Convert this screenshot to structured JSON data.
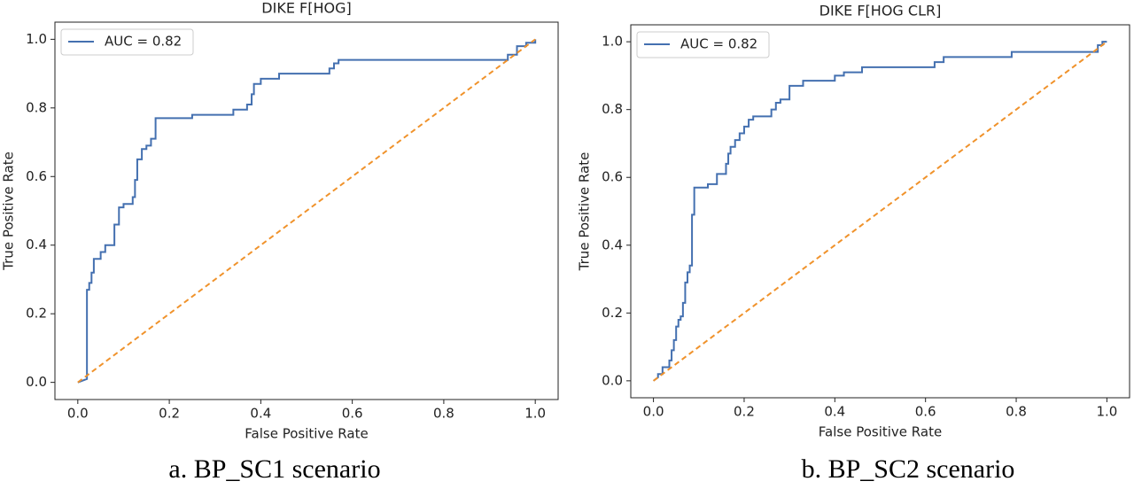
{
  "chart_data": [
    {
      "type": "line",
      "title": "DIKE F[HOG]",
      "xlabel": "False Positive Rate",
      "ylabel": "True Positive Rate",
      "caption": "a.  BP_SC1 scenario",
      "legend": "upper left",
      "xlim": [
        -0.05,
        1.05
      ],
      "ylim": [
        -0.05,
        1.05
      ],
      "xticks": [
        {
          "value": 0,
          "label": "0.0"
        },
        0.2,
        0.4,
        0.6,
        0.8,
        {
          "value": 1,
          "label": "1.0"
        }
      ],
      "yticks": [
        {
          "value": 0,
          "label": "0.0"
        },
        0.2,
        0.4,
        0.6,
        0.8,
        {
          "value": 1,
          "label": "1.0"
        }
      ],
      "series": [
        {
          "name": "AUC = 0.82",
          "color": "#4470b0",
          "style": "solid",
          "x": [
            0,
            0.02,
            0.02,
            0.025,
            0.025,
            0.03,
            0.03,
            0.035,
            0.035,
            0.05,
            0.05,
            0.06,
            0.06,
            0.08,
            0.08,
            0.09,
            0.09,
            0.1,
            0.1,
            0.12,
            0.12,
            0.125,
            0.125,
            0.13,
            0.13,
            0.14,
            0.14,
            0.15,
            0.15,
            0.16,
            0.16,
            0.17,
            0.17,
            0.25,
            0.25,
            0.34,
            0.34,
            0.37,
            0.37,
            0.38,
            0.38,
            0.385,
            0.385,
            0.4,
            0.4,
            0.44,
            0.44,
            0.55,
            0.55,
            0.56,
            0.56,
            0.57,
            0.57,
            0.94,
            0.94,
            0.96,
            0.96,
            0.98,
            0.98,
            1,
            1
          ],
          "values": [
            0,
            0.01,
            0.27,
            0.27,
            0.29,
            0.29,
            0.32,
            0.32,
            0.36,
            0.36,
            0.38,
            0.38,
            0.4,
            0.4,
            0.46,
            0.46,
            0.51,
            0.51,
            0.52,
            0.52,
            0.54,
            0.54,
            0.59,
            0.59,
            0.65,
            0.65,
            0.68,
            0.68,
            0.69,
            0.69,
            0.71,
            0.71,
            0.77,
            0.77,
            0.78,
            0.78,
            0.795,
            0.795,
            0.81,
            0.81,
            0.84,
            0.84,
            0.87,
            0.87,
            0.885,
            0.885,
            0.9,
            0.9,
            0.915,
            0.915,
            0.93,
            0.93,
            0.94,
            0.94,
            0.955,
            0.955,
            0.98,
            0.98,
            0.99,
            0.99,
            1
          ]
        },
        {
          "color": "#f0922b",
          "style": "dashed",
          "x": [
            0,
            1
          ],
          "values": [
            0,
            1
          ]
        }
      ]
    },
    {
      "type": "line",
      "title": "DIKE F[HOG CLR]",
      "xlabel": "False Positive Rate",
      "ylabel": "True Positive Rate",
      "caption": "b. BP_SC2 scenario",
      "legend": "upper left",
      "xlim": [
        -0.05,
        1.05
      ],
      "ylim": [
        -0.05,
        1.05
      ],
      "xticks": [
        {
          "value": 0,
          "label": "0.0"
        },
        0.2,
        0.4,
        0.6,
        0.8,
        {
          "value": 1,
          "label": "1.0"
        }
      ],
      "yticks": [
        {
          "value": 0,
          "label": "0.0"
        },
        0.2,
        0.4,
        0.6,
        0.8,
        {
          "value": 1,
          "label": "1.0"
        }
      ],
      "series": [
        {
          "name": "AUC = 0.82",
          "color": "#4470b0",
          "style": "solid",
          "x": [
            0,
            0.01,
            0.01,
            0.02,
            0.02,
            0.035,
            0.035,
            0.04,
            0.04,
            0.045,
            0.045,
            0.05,
            0.05,
            0.055,
            0.055,
            0.06,
            0.06,
            0.065,
            0.065,
            0.07,
            0.07,
            0.075,
            0.075,
            0.08,
            0.08,
            0.085,
            0.085,
            0.09,
            0.09,
            0.12,
            0.12,
            0.14,
            0.14,
            0.16,
            0.16,
            0.165,
            0.165,
            0.17,
            0.17,
            0.18,
            0.18,
            0.19,
            0.19,
            0.2,
            0.2,
            0.21,
            0.21,
            0.22,
            0.22,
            0.26,
            0.26,
            0.27,
            0.27,
            0.28,
            0.28,
            0.3,
            0.3,
            0.33,
            0.33,
            0.4,
            0.4,
            0.42,
            0.42,
            0.46,
            0.46,
            0.62,
            0.62,
            0.64,
            0.64,
            0.79,
            0.79,
            0.98,
            0.98,
            0.99,
            0.99,
            1
          ],
          "values": [
            0,
            0.01,
            0.02,
            0.02,
            0.04,
            0.04,
            0.06,
            0.06,
            0.09,
            0.09,
            0.12,
            0.12,
            0.16,
            0.16,
            0.18,
            0.18,
            0.19,
            0.19,
            0.23,
            0.23,
            0.29,
            0.29,
            0.32,
            0.32,
            0.34,
            0.34,
            0.49,
            0.49,
            0.57,
            0.57,
            0.58,
            0.58,
            0.61,
            0.61,
            0.64,
            0.64,
            0.67,
            0.67,
            0.69,
            0.69,
            0.71,
            0.71,
            0.73,
            0.73,
            0.75,
            0.75,
            0.77,
            0.77,
            0.78,
            0.78,
            0.8,
            0.8,
            0.82,
            0.82,
            0.83,
            0.83,
            0.87,
            0.87,
            0.885,
            0.885,
            0.9,
            0.9,
            0.91,
            0.91,
            0.925,
            0.925,
            0.94,
            0.94,
            0.955,
            0.955,
            0.97,
            0.97,
            0.99,
            0.99,
            1,
            1
          ]
        },
        {
          "color": "#f0922b",
          "style": "dashed",
          "x": [
            0,
            1
          ],
          "values": [
            0,
            1
          ]
        }
      ]
    }
  ]
}
